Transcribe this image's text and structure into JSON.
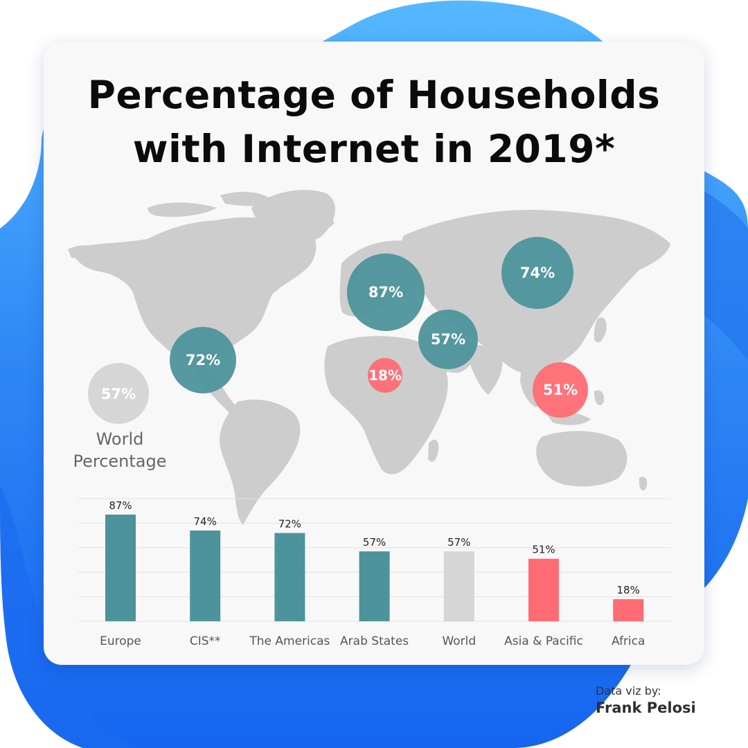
{
  "title": {
    "line1": "Percentage of Households",
    "line2": "with Internet in 2019*"
  },
  "map": {
    "world_badge": "57%",
    "world_label_line1": "World",
    "world_label_line2": "Percentage",
    "bubbles": [
      {
        "region": "Europe",
        "label": "87%"
      },
      {
        "region": "CIS**",
        "label": "74%"
      },
      {
        "region": "Arab States",
        "label": "57%"
      },
      {
        "region": "The Americas",
        "label": "72%"
      },
      {
        "region": "Africa",
        "label": "18%"
      },
      {
        "region": "Asia & Pacific",
        "label": "51%"
      }
    ]
  },
  "chart_data": {
    "type": "bar",
    "categories": [
      "Europe",
      "CIS**",
      "The Americas",
      "Arab States",
      "World",
      "Asia & Pacific",
      "Africa"
    ],
    "values": [
      87,
      74,
      72,
      57,
      57,
      51,
      18
    ],
    "data_labels": [
      "87%",
      "74%",
      "72%",
      "57%",
      "57%",
      "51%",
      "18%"
    ],
    "bar_colors": [
      "#4d939b",
      "#4d939b",
      "#4d939b",
      "#4d939b",
      "#d6d6d6",
      "#ff6b73",
      "#ff6b73"
    ],
    "ylim": [
      0,
      100
    ],
    "grid": true,
    "legend": "none"
  },
  "colors": {
    "teal": "#4d939b",
    "red": "#ff6b73",
    "gray": "#d6d6d6",
    "map_land": "#cdcdcd",
    "background_blue": "#2f86f3"
  },
  "credit": {
    "line1": "Data viz by:",
    "line2": "Frank Pelosi"
  }
}
